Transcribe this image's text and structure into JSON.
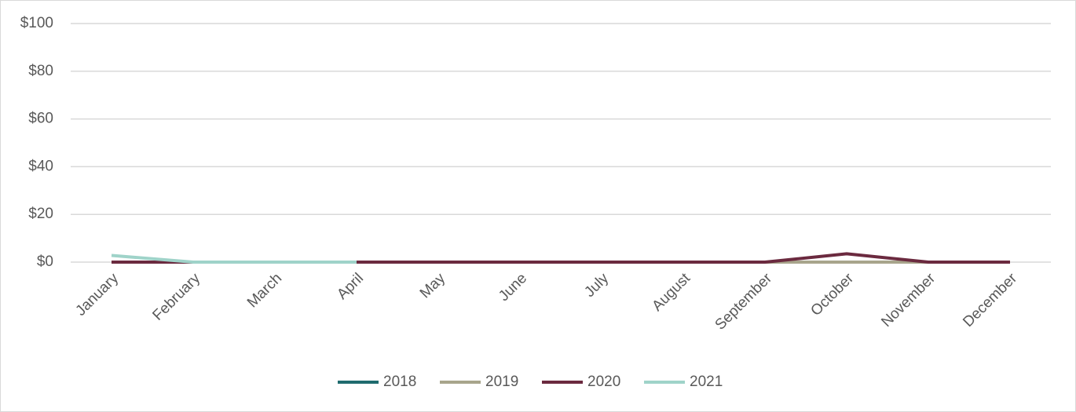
{
  "chart_data": {
    "type": "line",
    "categories": [
      "January",
      "February",
      "March",
      "April",
      "May",
      "June",
      "July",
      "August",
      "September",
      "October",
      "November",
      "December"
    ],
    "series": [
      {
        "name": "2018",
        "color": "#1f6b6e",
        "values": [
          0,
          0,
          0,
          0,
          0,
          0,
          0,
          0,
          0,
          0,
          0,
          0
        ]
      },
      {
        "name": "2019",
        "color": "#a8a58c",
        "values": [
          0,
          0,
          0,
          0,
          0,
          0,
          0,
          0,
          0,
          0,
          0,
          0
        ]
      },
      {
        "name": "2020",
        "color": "#6b2a3f",
        "values": [
          0,
          0,
          0,
          0,
          0,
          0,
          0,
          0,
          0,
          3.5,
          0,
          0
        ]
      },
      {
        "name": "2021",
        "color": "#9fd3c9",
        "values": [
          2.8,
          0,
          0,
          0,
          null,
          null,
          null,
          null,
          null,
          null,
          null,
          null
        ]
      }
    ],
    "ylim": [
      0,
      100
    ],
    "yticks": [
      {
        "value": 0,
        "label": "$0"
      },
      {
        "value": 20,
        "label": "$20"
      },
      {
        "value": 40,
        "label": "$40"
      },
      {
        "value": 60,
        "label": "$60"
      },
      {
        "value": 80,
        "label": "$80"
      },
      {
        "value": 100,
        "label": "$100"
      }
    ],
    "grid": true,
    "legend": "bottom"
  }
}
